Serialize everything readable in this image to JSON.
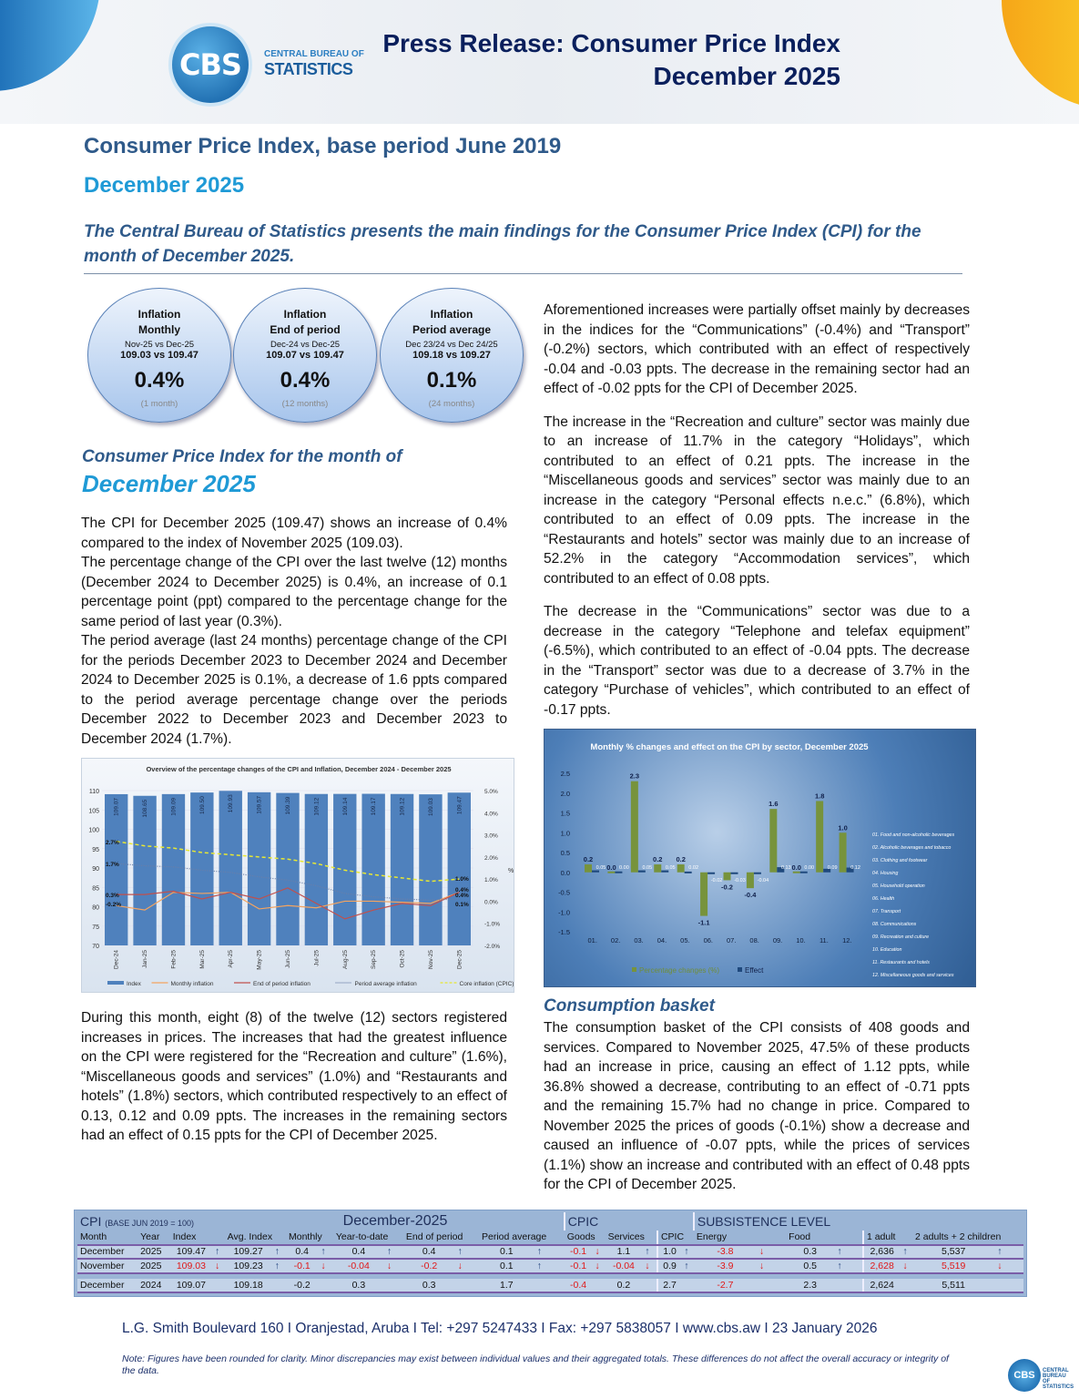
{
  "header": {
    "org_line1": "CENTRAL BUREAU OF",
    "org_line2": "STATISTICS",
    "logo": "CBS",
    "title_line1": "Press Release: Consumer Price Index",
    "title_line2": "December 2025"
  },
  "title": "Consumer Price Index, base period June 2019",
  "subtitle": "December 2025",
  "intro": "The Central Bureau of Statistics presents the main findings for the Consumer Price Index (CPI) for the month of December 2025.",
  "kpis": [
    {
      "h1": "Inflation",
      "h2": "Monthly",
      "cmp": "Nov-25 vs Dec-25",
      "vals": "109.03 vs 109.47",
      "pct": "0.4%",
      "dur": "(1 month)"
    },
    {
      "h1": "Inflation",
      "h2": "End of period",
      "cmp": "Dec-24 vs Dec-25",
      "vals": "109.07 vs 109.47",
      "pct": "0.4%",
      "dur": "(12 months)"
    },
    {
      "h1": "Inflation",
      "h2": "Period average",
      "cmp": "Dec 23/24 vs Dec 24/25",
      "vals": "109.18 vs 109.27",
      "pct": "0.1%",
      "dur": "(24 months)"
    }
  ],
  "section": {
    "line1": "Consumer Price Index for the month of",
    "line2": "December 2025"
  },
  "left_paras": [
    "The CPI for December 2025 (109.47) shows an increase of 0.4% compared to the index of November 2025 (109.03).",
    "The percentage change of the CPI over the last twelve (12) months (December 2024 to December 2025) is 0.4%, an increase of 0.1 percentage point (ppt) compared to the percentage change for the same period of last year (0.3%).",
    "The period average (last 24 months) percentage change of the CPI for the periods December 2023 to December 2024 and December 2024 to December 2025 is 0.1%, a decrease of 1.6 ppts compared to the period average percentage change over the periods December 2022 to December 2023 and December 2023 to December 2024 (1.7%).",
    "During this month, eight (8) of the twelve (12) sectors registered increases in prices. The increases that had the greatest influence on the CPI were registered for the “Recreation and culture” (1.6%), “Miscellaneous goods and services” (1.0%) and “Restaurants and hotels” (1.8%) sectors, which contributed respectively to an effect of 0.13, 0.12 and 0.09 ppts. The increases in the remaining sectors had an effect of 0.15 ppts for the CPI of December 2025."
  ],
  "right_paras": [
    "Aforementioned increases were partially offset mainly by decreases in the indices for the “Communications” (-0.4%) and “Transport” (-0.2%) sectors, which contributed with an effect of respectively -0.04 and -0.03 ppts. The decrease in the remaining sector had an effect of -0.02 ppts for the CPI of December 2025.",
    "The increase in the “Recreation and culture” sector was mainly due to an increase of 11.7% in the category “Holidays”, which contributed to an effect of 0.21 ppts. The increase in the “Miscellaneous goods and services” sector was mainly due to an increase in the category “Personal effects n.e.c.” (6.8%), which contributed to an effect of 0.09 ppts. The increase in the “Restaurants and hotels” sector was mainly due to an increase of 52.2% in the category “Accommodation services”, which contributed to an effect of 0.08 ppts.",
    "The decrease in the “Communications” sector was due to a decrease in the category “Telephone and telefax equipment” (-6.5%), which contributed to an effect of -0.04 ppts. The decrease in the “Transport” sector was due to a decrease of 3.7% in the category “Purchase of vehicles”, which contributed to an effect of -0.17 ppts."
  ],
  "basket": {
    "title": "Consumption basket",
    "text": "The consumption basket of the CPI consists of 408 goods and services. Compared to November 2025, 47.5% of these products had an increase in price, causing an effect of 1.12 ppts, while 36.8% showed a decrease, contributing to an effect of -0.71 ppts and the remaining 15.7% had no change in price. Compared to November 2025 the prices of goods (-0.1%) show a decrease and caused an influence of -0.07 ppts, while the prices of services (1.1%) show an increase and contributed with an effect of 0.48 ppts for the CPI of December 2025."
  },
  "chart_data": [
    {
      "type": "bar",
      "title": "Overview of the percentage changes of the CPI and Inflation, December 2024 - December 2025",
      "categories": [
        "Dec-24",
        "Jan-25",
        "Feb-25",
        "Mar-25",
        "Apr-25",
        "May-25",
        "Jun-25",
        "Jul-25",
        "Aug-25",
        "Sep-25",
        "Oct-25",
        "Nov-25",
        "Dec-25"
      ],
      "ylim": [
        70,
        110
      ],
      "yticks": [
        "70",
        "75",
        "80",
        "85",
        "90",
        "95",
        "100",
        "105",
        "110"
      ],
      "y2lim": [
        -2,
        5
      ],
      "y2ticks": [
        "-2.0%",
        "-1.0%",
        "0.0%",
        "1.0%",
        "2.0%",
        "3.0%",
        "4.0%",
        "5.0%"
      ],
      "y2label": "%",
      "series": [
        {
          "name": "Index",
          "kind": "bar",
          "color": "#4f81bd",
          "values": [
            109.07,
            108.65,
            109.09,
            109.5,
            109.93,
            109.57,
            109.39,
            109.12,
            109.14,
            109.17,
            109.12,
            109.03,
            109.47
          ]
        },
        {
          "name": "Monthly inflation",
          "kind": "line",
          "color": "#f4a460",
          "values": [
            -0.2,
            -0.4,
            0.4,
            0.35,
            0.4,
            -0.35,
            -0.2,
            -0.3,
            0.0,
            0.0,
            -0.05,
            -0.1,
            0.4
          ]
        },
        {
          "name": "End of period inflation",
          "kind": "line",
          "color": "#c0504d",
          "values": [
            0.3,
            0.3,
            0.45,
            0.1,
            0.4,
            0.1,
            0.6,
            -0.1,
            -0.8,
            -0.4,
            -0.1,
            -0.2,
            0.4
          ]
        },
        {
          "name": "Period average inflation",
          "kind": "dotted",
          "color": "#6b7fa8",
          "values": [
            1.7,
            1.6,
            1.55,
            1.4,
            1.3,
            1.1,
            0.95,
            0.7,
            0.35,
            0.2,
            0.1,
            0.05,
            0.1
          ]
        },
        {
          "name": "Core inflation (CPIC)",
          "kind": "dashed",
          "color": "#e8e832",
          "values": [
            2.7,
            2.5,
            2.4,
            2.2,
            2.1,
            2.0,
            1.9,
            1.7,
            1.4,
            1.2,
            1.05,
            0.9,
            1.0
          ]
        }
      ],
      "annotations": [
        "2.7%",
        "1.7%",
        "0.3%",
        "-0.2%",
        "1.0%",
        "0.4%",
        "0.4%",
        "0.1%"
      ]
    },
    {
      "type": "bar",
      "title": "Monthly % changes and effect on the CPI by sector, December 2025",
      "categories": [
        "01.",
        "02.",
        "03.",
        "04.",
        "05.",
        "06.",
        "07.",
        "08.",
        "09.",
        "10.",
        "11.",
        "12."
      ],
      "ylim": [
        -1.5,
        2.5
      ],
      "yticks": [
        "-1.5",
        "-1.0",
        "-0.5",
        "0.0",
        "0.5",
        "1.0",
        "1.5",
        "2.0",
        "2.5"
      ],
      "series": [
        {
          "name": "Percentage changes (%)",
          "color": "#77933c",
          "values": [
            0.2,
            0.0,
            2.3,
            0.2,
            0.2,
            -1.1,
            -0.2,
            -0.4,
            1.6,
            0.0,
            1.8,
            1.0
          ],
          "labels": [
            "0.2",
            "0.0",
            "2.3",
            "0.2",
            "0.2",
            "-1.1",
            "-0.2",
            "-0.4",
            "1.6",
            "0.0",
            "1.8",
            "1.0"
          ]
        },
        {
          "name": "Effect",
          "color": "#1f497d",
          "values": [
            0.05,
            0.0,
            0.05,
            0.05,
            0.02,
            -0.02,
            -0.03,
            -0.04,
            0.13,
            0.0,
            0.09,
            0.12
          ],
          "labels": [
            "0.05",
            "0.00",
            "0.05",
            "0.05",
            "0.02",
            "-0.02",
            "-0.03",
            "-0.04",
            "0.13",
            "0.00",
            "0.09",
            "0.12"
          ]
        }
      ],
      "sector_legend": [
        "01. Food and non-alcoholic beverages",
        "02. Alcoholic beverages and tobacco",
        "03. Clothing and footwear",
        "04. Housing",
        "05. Household operation",
        "06. Health",
        "07. Transport",
        "08. Communications",
        "09. Recreation and culture",
        "10. Education",
        "11. Restaurants and hotels",
        "12. Miscellaneous goods and services"
      ]
    }
  ],
  "table": {
    "group_cpi": "CPI",
    "group_cpi_base": "(BASE JUN 2019 = 100)",
    "group_month": "December-2025",
    "group_cpic": "CPIC",
    "group_sub": "SUBSISTENCE LEVEL",
    "columns": [
      "Month",
      "Year",
      "Index",
      "Avg. Index",
      "Monthly",
      "Year-to-date",
      "End of period",
      "Period average",
      "Goods",
      "Services",
      "CPIC",
      "Energy",
      "Food",
      "1 adult",
      "2 adults  + 2 children"
    ],
    "rows": [
      {
        "cells": [
          "December",
          "2025",
          "109.47",
          "109.27",
          "0.4",
          "0.4",
          "0.4",
          "0.1",
          "-0.1",
          "1.1",
          "1.0",
          "-3.8",
          "0.3",
          "2,636",
          "5,537"
        ],
        "arrows": [
          "",
          "",
          "up",
          "up",
          "up",
          "up",
          "up",
          "up",
          "down",
          "up",
          "up",
          "down",
          "up",
          "up",
          "up"
        ],
        "red": [
          8,
          11
        ]
      },
      {
        "cells": [
          "November",
          "2025",
          "109.03",
          "109.23",
          "-0.1",
          "-0.04",
          "-0.2",
          "0.1",
          "-0.1",
          "-0.04",
          "0.9",
          "-3.9",
          "0.5",
          "2,628",
          "5,519"
        ],
        "arrows": [
          "",
          "",
          "down",
          "up",
          "down",
          "down",
          "down",
          "up",
          "down",
          "down",
          "up",
          "down",
          "up",
          "down",
          "down"
        ],
        "red": [
          2,
          4,
          5,
          6,
          8,
          9,
          11,
          13,
          14
        ]
      },
      {
        "cells": [
          "December",
          "2024",
          "109.07",
          "109.18",
          "-0.2",
          "0.3",
          "0.3",
          "1.7",
          "-0.4",
          "0.2",
          "2.7",
          "-2.7",
          "2.3",
          "2,624",
          "5,511"
        ],
        "arrows": [
          "",
          "",
          "",
          "",
          "",
          "",
          "",
          "",
          "",
          "",
          "",
          "",
          "",
          "",
          ""
        ],
        "red": [
          8,
          11
        ]
      }
    ]
  },
  "footer": {
    "address": "L.G. Smith Boulevard 160 I Oranjestad, Aruba I Tel: +297 5247433 I Fax: +297 5838057 I www.cbs.aw I 23 January 2026",
    "note": "Note: Figures have been rounded for clarity. Minor discrepancies may exist between individual values and their aggregated totals. These differences do not affect the overall accuracy or integrity of the data.",
    "logo": "CBS",
    "logo_text": "CENTRAL BUREAU OF STATISTICS"
  }
}
